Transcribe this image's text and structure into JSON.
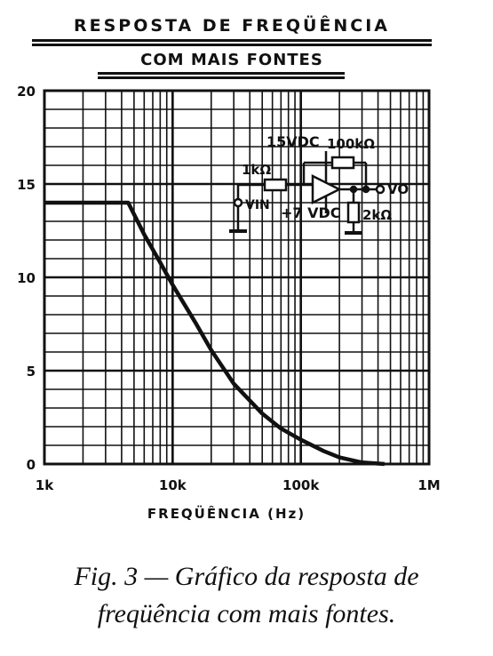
{
  "title": {
    "line1": "RESPOSTA DE FREQÜÊNCIA",
    "line2": "COM MAIS FONTES"
  },
  "chart_data": {
    "type": "line",
    "x_scale": "log",
    "xlim": [
      1000,
      1000000
    ],
    "ylim": [
      0,
      20
    ],
    "grid": true,
    "xlabel": "FREQÜÊNCIA (Hz)",
    "ylabel": "",
    "x_ticks": [
      {
        "value": 1000,
        "label": "1k"
      },
      {
        "value": 10000,
        "label": "10k"
      },
      {
        "value": 100000,
        "label": "100k"
      },
      {
        "value": 1000000,
        "label": "1M"
      }
    ],
    "y_ticks": [
      {
        "value": 0,
        "label": "0"
      },
      {
        "value": 5,
        "label": "5"
      },
      {
        "value": 10,
        "label": "10"
      },
      {
        "value": 15,
        "label": "15"
      },
      {
        "value": 20,
        "label": "20"
      }
    ],
    "series": [
      {
        "x": [
          1000,
          2000,
          3000,
          4500,
          6000,
          8000,
          10000,
          15000,
          20000,
          30000,
          50000,
          70000,
          100000,
          150000,
          200000,
          300000,
          450000
        ],
        "y": [
          14,
          14,
          14,
          14,
          12.3,
          10.8,
          9.6,
          7.6,
          6.1,
          4.3,
          2.7,
          1.9,
          1.3,
          0.7,
          0.35,
          0.08,
          0
        ],
        "color": "#111111"
      }
    ]
  },
  "schematic": {
    "supply_pos": "15VDC",
    "supply_neg": "+7 VDC",
    "r_in": "1kΩ",
    "r_fb": "100kΩ",
    "r_load": "2kΩ",
    "vin": "VIN",
    "vout": "VO"
  },
  "caption": {
    "line1": "Fig. 3 — Gráfico da resposta de",
    "line2": "freqüência com mais fontes."
  }
}
